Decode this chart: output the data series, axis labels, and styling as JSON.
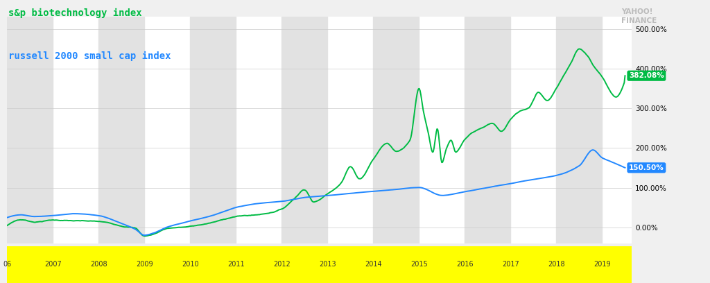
{
  "title_green": "s&p biotechnology index",
  "title_blue": "russell 2000 small cap index",
  "bg_color": "#f0f0f0",
  "plot_bg_color": "#ffffff",
  "green_color": "#00bb44",
  "blue_color": "#2288ff",
  "green_label_final": "382.08%",
  "blue_label_final": "150.50%",
  "xticklabels": [
    "06",
    "2007",
    "2008",
    "2009",
    "2010",
    "2011",
    "2012",
    "2013",
    "2014",
    "2015",
    "2016",
    "2017",
    "2018",
    "2019"
  ],
  "yticks": [
    0.0,
    100.0,
    200.0,
    300.0,
    400.0,
    500.0
  ],
  "ylim": [
    -40,
    530
  ],
  "xlim_start": 2006.0,
  "xlim_end": 2019.65,
  "shade_years": [
    2006,
    2008,
    2010,
    2012,
    2014,
    2016,
    2018
  ],
  "yellow_bar_color": "#ffff00",
  "green_keypoints_t": [
    0,
    0.3,
    0.6,
    1.0,
    1.5,
    2.0,
    2.5,
    2.8,
    3.0,
    3.2,
    3.5,
    4.0,
    4.5,
    5.0,
    5.5,
    6.0,
    6.3,
    6.5,
    6.7,
    7.0,
    7.3,
    7.5,
    7.7,
    8.0,
    8.3,
    8.5,
    8.8,
    9.0,
    9.1,
    9.2,
    9.3,
    9.4,
    9.5,
    9.6,
    9.7,
    9.8,
    10.0,
    10.2,
    10.4,
    10.6,
    10.8,
    11.0,
    11.2,
    11.4,
    11.5,
    11.6,
    11.8,
    12.0,
    12.2,
    12.3,
    12.5,
    12.7,
    12.8,
    13.0,
    13.3,
    13.5
  ],
  "green_keypoints_v": [
    5,
    20,
    15,
    20,
    18,
    15,
    5,
    0,
    -20,
    -15,
    0,
    5,
    15,
    30,
    35,
    50,
    80,
    100,
    70,
    90,
    120,
    160,
    130,
    180,
    220,
    200,
    230,
    360,
    300,
    250,
    200,
    260,
    175,
    210,
    230,
    200,
    230,
    250,
    260,
    270,
    250,
    280,
    300,
    310,
    330,
    350,
    330,
    360,
    400,
    420,
    460,
    440,
    420,
    390,
    340,
    382
  ],
  "blue_keypoints_t": [
    0,
    0.3,
    0.6,
    1.0,
    1.5,
    2.0,
    2.5,
    2.8,
    3.0,
    3.2,
    3.5,
    4.0,
    4.5,
    5.0,
    5.5,
    6.0,
    6.5,
    7.0,
    7.5,
    8.0,
    8.5,
    9.0,
    9.5,
    10.0,
    10.5,
    11.0,
    11.5,
    12.0,
    12.5,
    12.8,
    13.0,
    13.2,
    13.5
  ],
  "blue_keypoints_v": [
    25,
    32,
    28,
    30,
    35,
    30,
    10,
    -5,
    -20,
    -15,
    0,
    15,
    30,
    50,
    60,
    65,
    75,
    80,
    85,
    90,
    95,
    100,
    80,
    90,
    100,
    110,
    120,
    130,
    155,
    195,
    175,
    165,
    150
  ]
}
